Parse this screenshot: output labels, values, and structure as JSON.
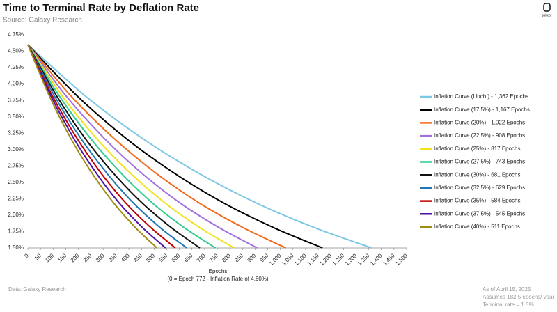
{
  "chart_data": {
    "type": "line",
    "title": "Time to Terminal Rate by Deflation Rate",
    "subtitle": "Source: Galaxy Research",
    "xlabel": "Epochs",
    "xnote": "(0 = Epoch 772 - Inflation Rate of 4.60%)",
    "footer_left": "Data: Galaxy Research",
    "footer_right": [
      "As of April 15, 2025",
      "Assumes 182.5 epochs/ year",
      "Terminal rate = 1.5%"
    ],
    "logo": "galaxy",
    "xlim": [
      0,
      1500
    ],
    "ylim": [
      1.5,
      4.75
    ],
    "xticks": [
      0,
      50,
      100,
      150,
      200,
      250,
      300,
      350,
      400,
      450,
      500,
      550,
      600,
      650,
      700,
      750,
      800,
      850,
      900,
      950,
      {
        "value": 1000,
        "label": "1,000"
      },
      {
        "value": 1050,
        "label": "1,050"
      },
      {
        "value": 1100,
        "label": "1,100"
      },
      {
        "value": 1150,
        "label": "1,150"
      },
      {
        "value": 1200,
        "label": "1,200"
      },
      {
        "value": 1250,
        "label": "1,250"
      },
      {
        "value": 1300,
        "label": "1,300"
      },
      {
        "value": 1350,
        "label": "1,350"
      },
      {
        "value": 1400,
        "label": "1,400"
      },
      {
        "value": 1450,
        "label": "1,450"
      },
      {
        "value": 1500,
        "label": "1,500"
      }
    ],
    "yticks": [
      {
        "value": 1.5,
        "label": "1.50%"
      },
      {
        "value": 1.75,
        "label": "1.75%"
      },
      {
        "value": 2.0,
        "label": "2.00%"
      },
      {
        "value": 2.25,
        "label": "2.25%"
      },
      {
        "value": 2.5,
        "label": "2.50%"
      },
      {
        "value": 2.75,
        "label": "2.75%"
      },
      {
        "value": 3.0,
        "label": "3.00%"
      },
      {
        "value": 3.25,
        "label": "3.25%"
      },
      {
        "value": 3.5,
        "label": "3.50%"
      },
      {
        "value": 3.75,
        "label": "3.75%"
      },
      {
        "value": 4.0,
        "label": "4.00%"
      },
      {
        "value": 4.25,
        "label": "4.25%"
      },
      {
        "value": 4.5,
        "label": "4.50%"
      },
      {
        "value": 4.75,
        "label": "4.75%"
      }
    ],
    "grid": false,
    "legend": "right",
    "series": [
      {
        "name": "Inflation Curve (Unch.) - 1,362 Epochs",
        "color": "#7ec8e3",
        "x": [
          0,
          227,
          454,
          681,
          908,
          1135,
          1362
        ],
        "values": [
          4.6,
          3.82,
          3.17,
          2.63,
          2.18,
          1.81,
          1.5
        ]
      },
      {
        "name": "Inflation Curve (17.5%) - 1,167 Epochs",
        "color": "#000000",
        "x": [
          0,
          195,
          389,
          584,
          778,
          973,
          1167
        ],
        "values": [
          4.6,
          3.82,
          3.17,
          2.63,
          2.18,
          1.81,
          1.5
        ]
      },
      {
        "name": "Inflation Curve (20%) - 1,022 Epochs",
        "color": "#f26b1d",
        "x": [
          0,
          170,
          341,
          511,
          681,
          852,
          1022
        ],
        "values": [
          4.6,
          3.82,
          3.17,
          2.63,
          2.18,
          1.81,
          1.5
        ]
      },
      {
        "name": "Inflation Curve (22.5%) - 908 Epochs",
        "color": "#a070dc",
        "x": [
          0,
          151,
          303,
          454,
          605,
          757,
          908
        ],
        "values": [
          4.6,
          3.82,
          3.17,
          2.63,
          2.18,
          1.81,
          1.5
        ]
      },
      {
        "name": "Inflation Curve (25%) - 817 Epochs",
        "color": "#f2e21a",
        "x": [
          0,
          136,
          272,
          409,
          545,
          681,
          817
        ],
        "values": [
          4.6,
          3.82,
          3.17,
          2.63,
          2.18,
          1.81,
          1.5
        ]
      },
      {
        "name": "Inflation Curve (27.5%) - 743 Epochs",
        "color": "#2ecc8f",
        "x": [
          0,
          124,
          248,
          372,
          495,
          619,
          743
        ],
        "values": [
          4.6,
          3.82,
          3.17,
          2.63,
          2.18,
          1.81,
          1.5
        ]
      },
      {
        "name": "Inflation Curve (30%) - 681 Epochs",
        "color": "#111111",
        "x": [
          0,
          114,
          227,
          341,
          454,
          568,
          681
        ],
        "values": [
          4.6,
          3.82,
          3.17,
          2.63,
          2.18,
          1.81,
          1.5
        ]
      },
      {
        "name": "Inflation Curve (32.5%) - 629 Epochs",
        "color": "#1f78b4",
        "x": [
          0,
          105,
          210,
          315,
          419,
          524,
          629
        ],
        "values": [
          4.6,
          3.82,
          3.17,
          2.63,
          2.18,
          1.81,
          1.5
        ]
      },
      {
        "name": "Inflation Curve (35%) - 584 Epochs",
        "color": "#c00000",
        "x": [
          0,
          97,
          195,
          292,
          389,
          487,
          584
        ],
        "values": [
          4.6,
          3.82,
          3.17,
          2.63,
          2.18,
          1.81,
          1.5
        ]
      },
      {
        "name": "Inflation Curve (37.5%) - 545 Epochs",
        "color": "#4b12a8",
        "x": [
          0,
          91,
          182,
          273,
          363,
          454,
          545
        ],
        "values": [
          4.6,
          3.82,
          3.17,
          2.63,
          2.18,
          1.81,
          1.5
        ]
      },
      {
        "name": "Inflation Curve (40%) - 511 Epochs",
        "color": "#a08c14",
        "x": [
          0,
          85,
          170,
          256,
          341,
          426,
          511
        ],
        "values": [
          4.6,
          3.82,
          3.17,
          2.63,
          2.18,
          1.81,
          1.5
        ]
      }
    ]
  }
}
